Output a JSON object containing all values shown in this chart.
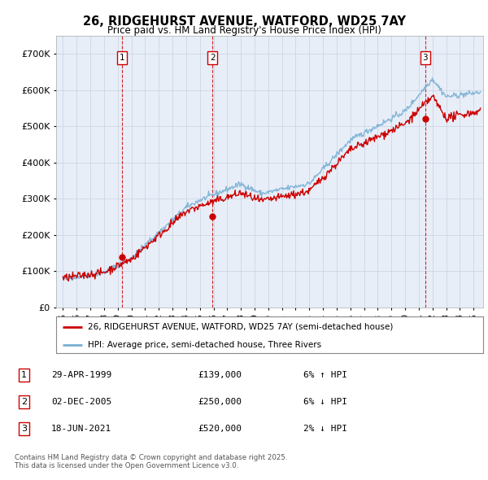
{
  "title": "26, RIDGEHURST AVENUE, WATFORD, WD25 7AY",
  "subtitle": "Price paid vs. HM Land Registry's House Price Index (HPI)",
  "ylabel_ticks": [
    "£0",
    "£100K",
    "£200K",
    "£300K",
    "£400K",
    "£500K",
    "£600K",
    "£700K"
  ],
  "ylim": [
    0,
    750000
  ],
  "xlim_start": 1994.5,
  "xlim_end": 2025.7,
  "hpi_color": "#7ab0d4",
  "price_color": "#cc0000",
  "background_color": "#e8eef8",
  "grid_color": "#c8d0e0",
  "legend_label_red": "26, RIDGEHURST AVENUE, WATFORD, WD25 7AY (semi-detached house)",
  "legend_label_blue": "HPI: Average price, semi-detached house, Three Rivers",
  "transactions": [
    {
      "num": 1,
      "date": "29-APR-1999",
      "price": 139000,
      "pct": "6%",
      "dir": "↑"
    },
    {
      "num": 2,
      "date": "02-DEC-2005",
      "price": 250000,
      "pct": "6%",
      "dir": "↓"
    },
    {
      "num": 3,
      "date": "18-JUN-2021",
      "price": 520000,
      "pct": "2%",
      "dir": "↓"
    }
  ],
  "footer": "Contains HM Land Registry data © Crown copyright and database right 2025.\nThis data is licensed under the Open Government Licence v3.0.",
  "vline_color": "#cc0000",
  "marker_years": [
    1999.33,
    2005.92,
    2021.46
  ],
  "marker_prices": [
    139000,
    250000,
    520000
  ],
  "xtick_years": [
    1995,
    1996,
    1997,
    1998,
    1999,
    2000,
    2001,
    2002,
    2003,
    2004,
    2005,
    2006,
    2007,
    2008,
    2009,
    2010,
    2011,
    2012,
    2013,
    2014,
    2015,
    2016,
    2017,
    2018,
    2019,
    2020,
    2021,
    2022,
    2023,
    2024,
    2025
  ]
}
